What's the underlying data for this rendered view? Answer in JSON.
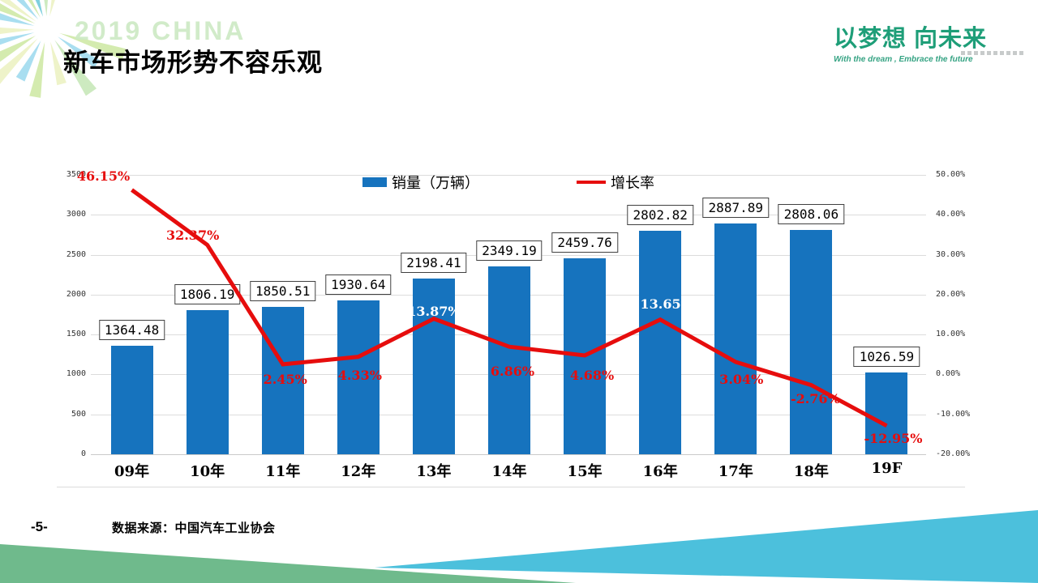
{
  "slide": {
    "watermark": "2019 CHINA",
    "title": "新车市场形势不容乐观",
    "page_number": "-5-",
    "source": "数据来源：中国汽车工业协会"
  },
  "logo": {
    "main": "以梦想 向未来",
    "tagline": "With the dream , Embrace the future"
  },
  "colors": {
    "bar_blue": "#1673be",
    "line_red": "#e60d0d",
    "logo_green": "#1e9e78",
    "watermark_green": "#cde9c4",
    "footer_wedge_green": "#6fba8c",
    "footer_wedge_blue": "#4cc0dc",
    "gridline": "#dcdcdc"
  },
  "chart_data": {
    "type": "bar",
    "subtype": "combo bar + line, dual axis",
    "categories": [
      "09年",
      "10年",
      "11年",
      "12年",
      "13年",
      "14年",
      "15年",
      "16年",
      "17年",
      "18年",
      "19F"
    ],
    "series": [
      {
        "name": "销量（万辆）",
        "type": "bar",
        "axis": "left",
        "color": "#1673be",
        "values": [
          1364.48,
          1806.19,
          1850.51,
          1930.64,
          2198.41,
          2349.19,
          2459.76,
          2802.82,
          2887.89,
          2808.06,
          1026.59
        ],
        "labels": [
          "1364.48",
          "1806.19",
          "1850.51",
          "1930.64",
          "2198.41",
          "2349.19",
          "2459.76",
          "2802.82",
          "2887.89",
          "2808.06",
          "1026.59"
        ]
      },
      {
        "name": "增长率",
        "type": "line",
        "axis": "right",
        "color": "#e60d0d",
        "values": [
          46.15,
          32.37,
          2.45,
          4.33,
          13.87,
          6.86,
          4.68,
          13.65,
          3.04,
          -2.76,
          -12.95
        ],
        "labels": [
          "46.15%",
          "32.37%",
          "2.45%",
          "4.33%",
          "13.87%",
          "6.86%",
          "4.68%",
          "13.65%",
          "3.04%",
          "-2.76%",
          "-12.95%"
        ]
      }
    ],
    "left_axis": {
      "min": 0,
      "max": 3500,
      "step": 500,
      "ticks": [
        "3500",
        "3000",
        "2500",
        "2000",
        "1500",
        "1000",
        "500",
        "0"
      ]
    },
    "right_axis": {
      "min": -20,
      "max": 50,
      "step": 10,
      "ticks": [
        "50.00%",
        "40.00%",
        "30.00%",
        "20.00%",
        "10.00%",
        "0.00%",
        "-10.00%",
        "-20.00%"
      ]
    },
    "legend_position": "top-center",
    "grid": true
  }
}
